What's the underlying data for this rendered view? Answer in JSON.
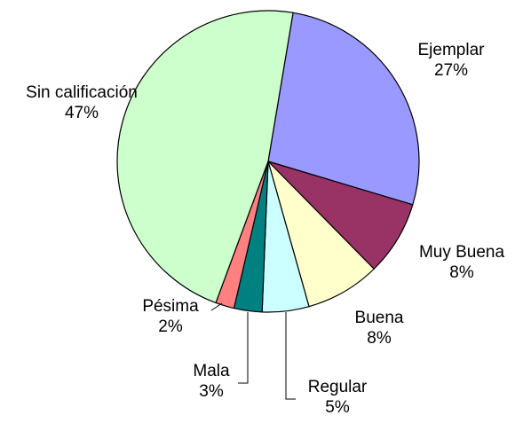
{
  "chart_data": {
    "type": "pie",
    "categories": [
      "Ejemplar",
      "Muy Buena",
      "Buena",
      "Regular",
      "Mala",
      "Pésima",
      "Sin calificación"
    ],
    "values": [
      27,
      8,
      8,
      5,
      3,
      2,
      47
    ],
    "value_labels": [
      "27%",
      "8%",
      "8%",
      "5%",
      "3%",
      "2%",
      "47%"
    ],
    "colors": [
      "#9999ff",
      "#993366",
      "#ffffcc",
      "#ccffff",
      "#008080",
      "#ff8080",
      "#ccffcc"
    ]
  }
}
